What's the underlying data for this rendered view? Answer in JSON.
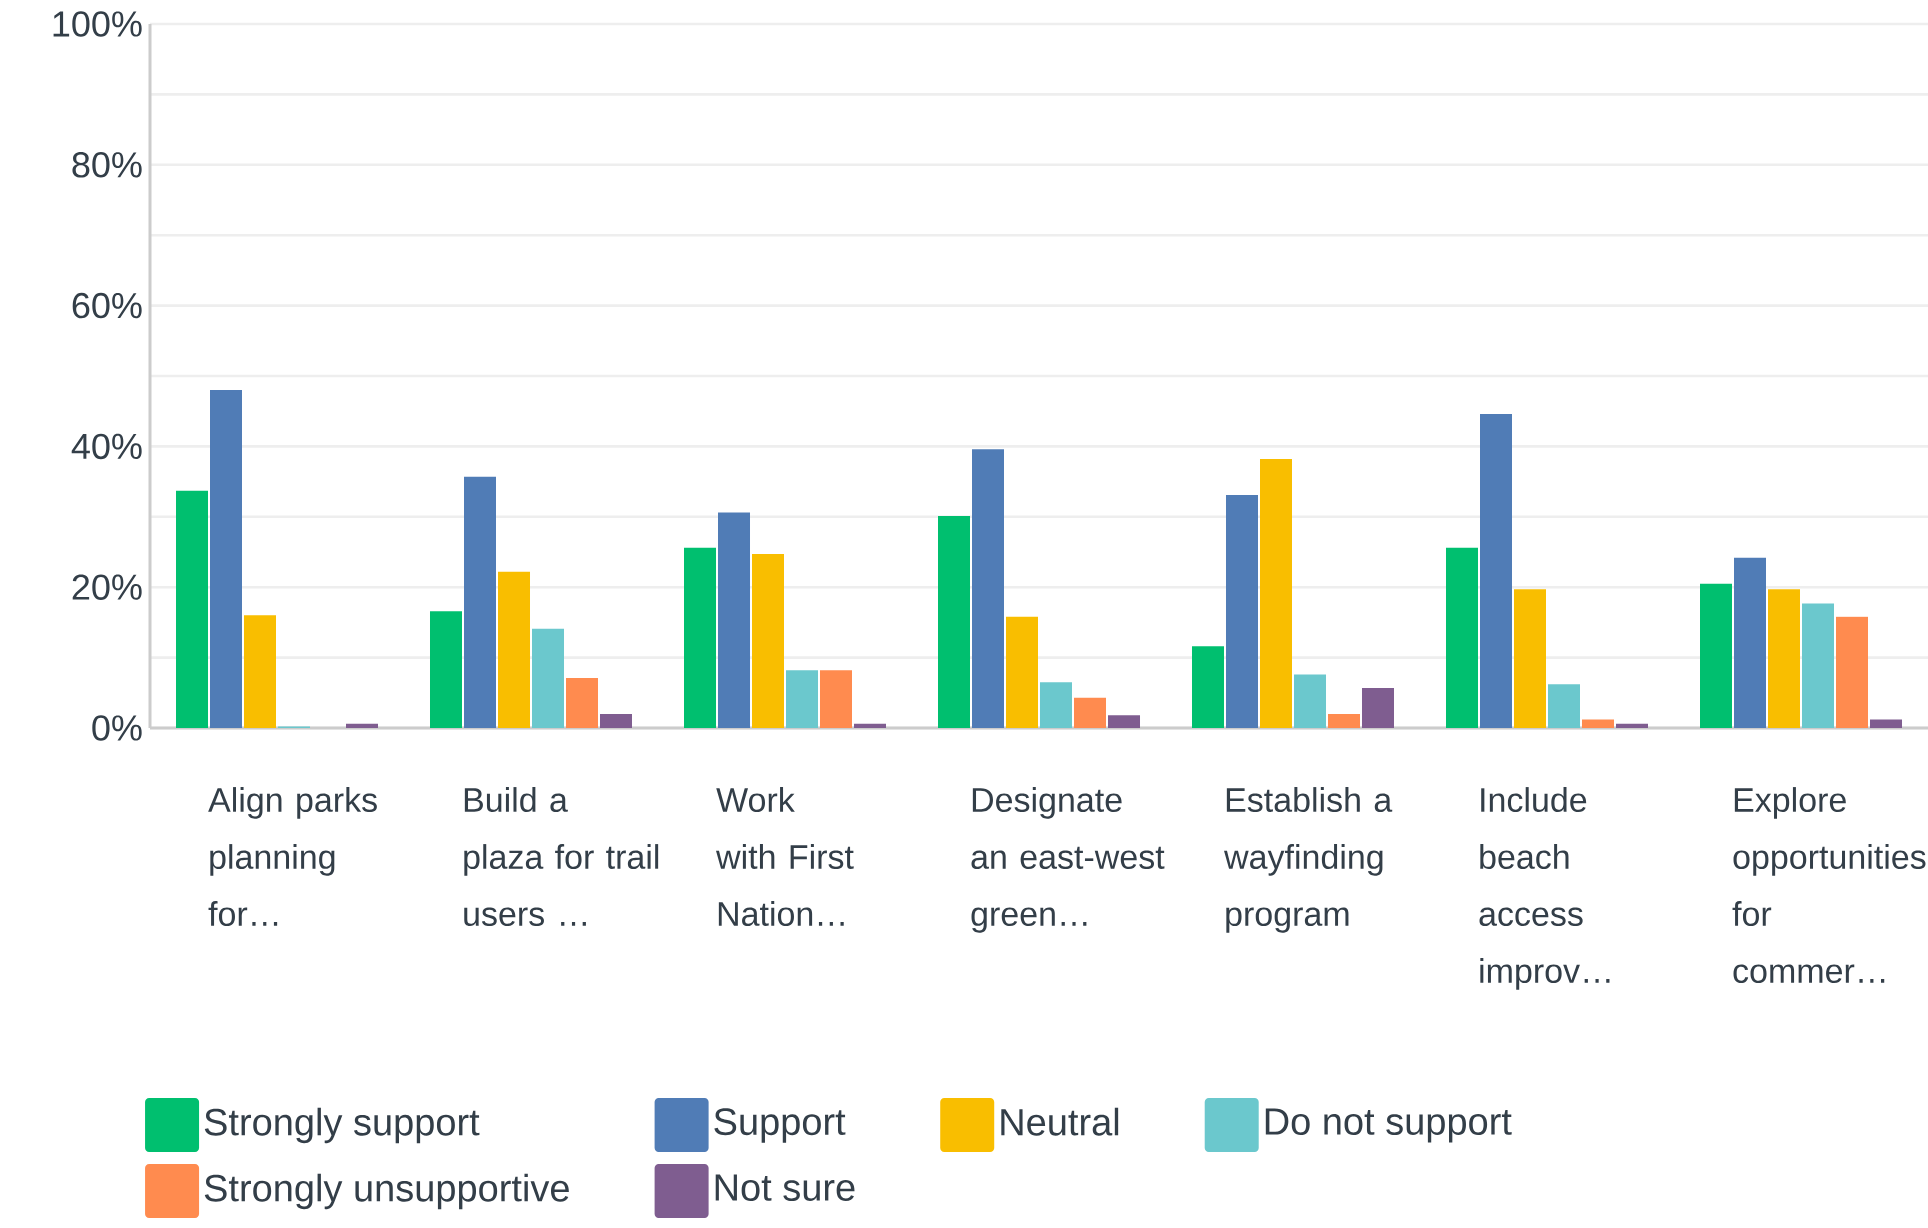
{
  "chart_data": {
    "type": "bar",
    "categories": [
      "Align parks planning for…",
      "Build a plaza for trail users …",
      "Work with First Nation…",
      "Designate an east-west green…",
      "Establish a wayfinding program",
      "Include beach access improv…",
      "Explore opportunities for commer…"
    ],
    "series": [
      {
        "name": "Strongly support",
        "color": "#00bf6f",
        "values": [
          33.7,
          16.6,
          25.6,
          30.1,
          11.6,
          25.6,
          20.5
        ]
      },
      {
        "name": "Support",
        "color": "#507cb6",
        "values": [
          48.0,
          35.7,
          30.6,
          39.6,
          33.1,
          44.6,
          24.2
        ]
      },
      {
        "name": "Neutral",
        "color": "#f9be00",
        "values": [
          16.0,
          22.2,
          24.7,
          15.8,
          38.2,
          19.7,
          19.7
        ]
      },
      {
        "name": "Do not support",
        "color": "#6bc8cd",
        "values": [
          0.2,
          14.1,
          8.2,
          6.5,
          7.6,
          6.2,
          17.7
        ]
      },
      {
        "name": "Strongly unsupportive",
        "color": "#ff8b4f",
        "values": [
          0,
          7.1,
          8.2,
          4.3,
          2.0,
          1.2,
          15.8
        ]
      },
      {
        "name": "Not sure",
        "color": "#7f5d90",
        "values": [
          0.6,
          2.0,
          0.6,
          1.8,
          5.7,
          0.6,
          1.2
        ]
      }
    ],
    "ylim": [
      0,
      100
    ],
    "yticks": [
      {
        "value": 0,
        "label": "0%"
      },
      {
        "value": 10,
        "label": null
      },
      {
        "value": 20,
        "label": "20%"
      },
      {
        "value": 30,
        "label": null
      },
      {
        "value": 40,
        "label": "40%"
      },
      {
        "value": 50,
        "label": null
      },
      {
        "value": 60,
        "label": "60%"
      },
      {
        "value": 70,
        "label": null
      },
      {
        "value": 80,
        "label": "80%"
      },
      {
        "value": 90,
        "label": null
      },
      {
        "value": 100,
        "label": "100%"
      }
    ],
    "grid": "y",
    "legend": "bottom"
  }
}
